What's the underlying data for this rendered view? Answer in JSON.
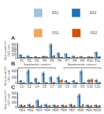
{
  "chart_data": [
    {
      "type": "bar",
      "title": "A",
      "ylabel": "Spot counts/10⁶\nCD3⁺ cells",
      "categories": [
        "P1",
        "P2",
        "P3",
        "P4",
        "P5",
        "P6",
        "P7",
        "P8",
        "P9",
        "P10",
        "P11"
      ],
      "series": [
        {
          "name": "ES1",
          "color": "#9dc3e0",
          "values": [
            160,
            100,
            60,
            80,
            750,
            260,
            220,
            90,
            70,
            60,
            300
          ],
          "errors": [
            25,
            18,
            12,
            18,
            75,
            35,
            28,
            18,
            12,
            12,
            38
          ]
        },
        {
          "name": "ES2",
          "color": "#2171b5",
          "values": [
            180,
            120,
            75,
            100,
            800,
            280,
            240,
            110,
            90,
            80,
            340
          ],
          "errors": [
            28,
            22,
            14,
            22,
            85,
            40,
            32,
            22,
            14,
            14,
            42
          ]
        },
        {
          "name": "OS1",
          "color": "#f4a661",
          "values": [
            20,
            15,
            10,
            60,
            90,
            20,
            15,
            8,
            8,
            35,
            55
          ],
          "errors": [
            6,
            4,
            4,
            12,
            18,
            6,
            4,
            3,
            3,
            8,
            12
          ]
        },
        {
          "name": "OS2",
          "color": "#d4510a",
          "values": [
            40,
            25,
            20,
            80,
            130,
            45,
            25,
            15,
            15,
            55,
            80
          ],
          "errors": [
            9,
            7,
            7,
            16,
            22,
            10,
            7,
            5,
            5,
            11,
            16
          ]
        }
      ],
      "ylim": [
        0,
        900
      ],
      "yticks": [
        0,
        200,
        400,
        600,
        800
      ],
      "grid": false,
      "legend": "upper right"
    },
    {
      "type": "bar",
      "title": "B",
      "ylabel": "Spot counts/10⁶\nCD3⁺ cells",
      "categories": [
        "C1",
        "C2",
        "C4",
        "C5",
        "C7",
        "C8",
        "C3",
        "C6",
        "C9",
        "C10",
        "C11"
      ],
      "series": [
        {
          "name": "ES1",
          "color": "#9dc3e0",
          "values": [
            70,
            380,
            130,
            320,
            180,
            180,
            70,
            70,
            360,
            90,
            90
          ],
          "errors": [
            12,
            45,
            22,
            36,
            26,
            26,
            12,
            12,
            40,
            18,
            18
          ]
        },
        {
          "name": "ES2",
          "color": "#2171b5",
          "values": [
            90,
            430,
            160,
            350,
            210,
            210,
            90,
            90,
            410,
            115,
            115
          ],
          "errors": [
            12,
            50,
            25,
            40,
            30,
            30,
            12,
            12,
            45,
            22,
            22
          ]
        },
        {
          "name": "OS1",
          "color": "#f4a661",
          "values": [
            15,
            15,
            15,
            15,
            15,
            80,
            15,
            15,
            15,
            100,
            15
          ],
          "errors": [
            4,
            4,
            4,
            4,
            4,
            18,
            4,
            4,
            4,
            22,
            4
          ]
        },
        {
          "name": "OS2",
          "color": "#d4510a",
          "values": [
            25,
            25,
            25,
            25,
            25,
            110,
            25,
            25,
            25,
            130,
            25
          ],
          "errors": [
            7,
            7,
            7,
            7,
            7,
            22,
            7,
            7,
            7,
            28,
            7
          ]
        }
      ],
      "ylim": [
        0,
        500
      ],
      "yticks": [
        0,
        200,
        400
      ],
      "grid": false,
      "annotations": [
        {
          "text": "Symptomatic contacts",
          "start": "C1",
          "end": "C7"
        },
        {
          "text": "Asymptomatic contacts",
          "start": "C3",
          "end": "C11"
        }
      ]
    },
    {
      "type": "bar",
      "title": "C",
      "ylabel": "Spot counts/10⁶\nCD3⁺ cells",
      "categories": [
        "HD1",
        "HD2",
        "HD3",
        "HD4",
        "HD5",
        "HD6",
        "HD7",
        "HD8",
        "HD9",
        "HD10"
      ],
      "series": [
        {
          "name": "ES1",
          "color": "#9dc3e0",
          "values": [
            70,
            90,
            250,
            90,
            70,
            70,
            90,
            480,
            70,
            70
          ],
          "errors": [
            12,
            18,
            35,
            18,
            12,
            12,
            18,
            55,
            12,
            12
          ]
        },
        {
          "name": "ES2",
          "color": "#2171b5",
          "values": [
            90,
            115,
            300,
            115,
            90,
            90,
            115,
            530,
            90,
            90
          ],
          "errors": [
            12,
            22,
            40,
            22,
            12,
            12,
            22,
            65,
            12,
            12
          ]
        },
        {
          "name": "OS1",
          "color": "#f4a661",
          "values": [
            20,
            20,
            20,
            20,
            20,
            20,
            20,
            20,
            20,
            20
          ],
          "errors": [
            6,
            6,
            6,
            6,
            6,
            6,
            6,
            6,
            6,
            6
          ]
        },
        {
          "name": "OS2",
          "color": "#d4510a",
          "values": [
            65,
            65,
            65,
            65,
            65,
            65,
            65,
            105,
            65,
            65
          ],
          "errors": [
            13,
            13,
            13,
            13,
            13,
            13,
            13,
            22,
            13,
            13
          ]
        }
      ],
      "ylim": [
        0,
        650
      ],
      "yticks": [
        0,
        200,
        400,
        600
      ],
      "grid": false
    }
  ]
}
